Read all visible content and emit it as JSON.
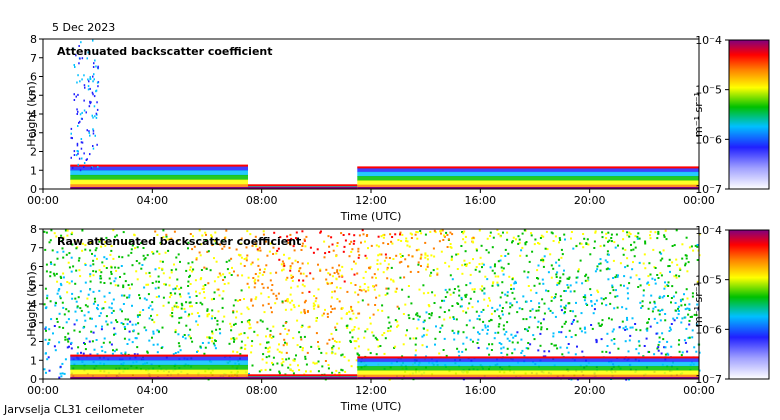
{
  "date_label": "5 Dec 2023",
  "footer": "Jarvselja CL31 ceilometer",
  "chart_data": [
    {
      "type": "heatmap",
      "title": "Attenuated backscatter coefficient",
      "xlabel": "Time (UTC)",
      "ylabel": "Height (km)",
      "x_ticks": [
        "00:00",
        "04:00",
        "08:00",
        "12:00",
        "16:00",
        "20:00",
        "00:00"
      ],
      "x_range_hours": [
        0,
        24
      ],
      "ylim": [
        0,
        8
      ],
      "y_ticks": [
        0,
        1,
        2,
        3,
        4,
        5,
        6,
        7,
        8
      ],
      "colorbar": {
        "scale": "log",
        "range": [
          1e-07,
          0.0001
        ],
        "tick_labels": [
          "10-4",
          "10-5",
          "10-6",
          "10-7"
        ],
        "unit_label": "m-1 sr-1",
        "colormap": [
          "#ffffff",
          "#2020ff",
          "#00c0ff",
          "#00c000",
          "#ffff00",
          "#ff8000",
          "#ff0000",
          "#800080"
        ]
      },
      "layers": [
        {
          "feature": "boundary layer",
          "start_h": 1.0,
          "end_h": 7.5,
          "height_km": 1.25
        },
        {
          "feature": "surface layer",
          "start_h": 7.5,
          "end_h": 11.5,
          "height_km": 0.2
        },
        {
          "feature": "boundary layer",
          "start_h": 11.5,
          "end_h": 24.0,
          "height_km": 1.15
        },
        {
          "feature": "precipitation streaks",
          "start_h": 1.0,
          "end_h": 2.0,
          "height_km": 8.0
        }
      ]
    },
    {
      "type": "heatmap",
      "title": "Raw attenuated backscatter coefficient",
      "xlabel": "Time (UTC)",
      "ylabel": "Height (km)",
      "x_ticks": [
        "00:00",
        "04:00",
        "08:00",
        "12:00",
        "16:00",
        "20:00",
        "00:00"
      ],
      "x_range_hours": [
        0,
        24
      ],
      "ylim": [
        0,
        8
      ],
      "y_ticks": [
        0,
        1,
        2,
        3,
        4,
        5,
        6,
        7,
        8
      ],
      "colorbar": {
        "scale": "log",
        "range": [
          1e-07,
          0.0001
        ],
        "tick_labels": [
          "10-4",
          "10-5",
          "10-6",
          "10-7"
        ],
        "unit_label": "m-1 sr-1",
        "colormap": [
          "#ffffff",
          "#2020ff",
          "#00c0ff",
          "#00c000",
          "#ffff00",
          "#ff8000",
          "#ff0000",
          "#800080"
        ]
      },
      "layers": [
        {
          "feature": "noise background",
          "start_h": 0.0,
          "end_h": 24.0,
          "height_km": 8.0
        },
        {
          "feature": "boundary layer",
          "start_h": 1.0,
          "end_h": 7.5,
          "height_km": 1.25
        },
        {
          "feature": "surface layer",
          "start_h": 7.5,
          "end_h": 11.5,
          "height_km": 0.2
        },
        {
          "feature": "boundary layer",
          "start_h": 11.5,
          "end_h": 24.0,
          "height_km": 1.15
        }
      ]
    }
  ]
}
